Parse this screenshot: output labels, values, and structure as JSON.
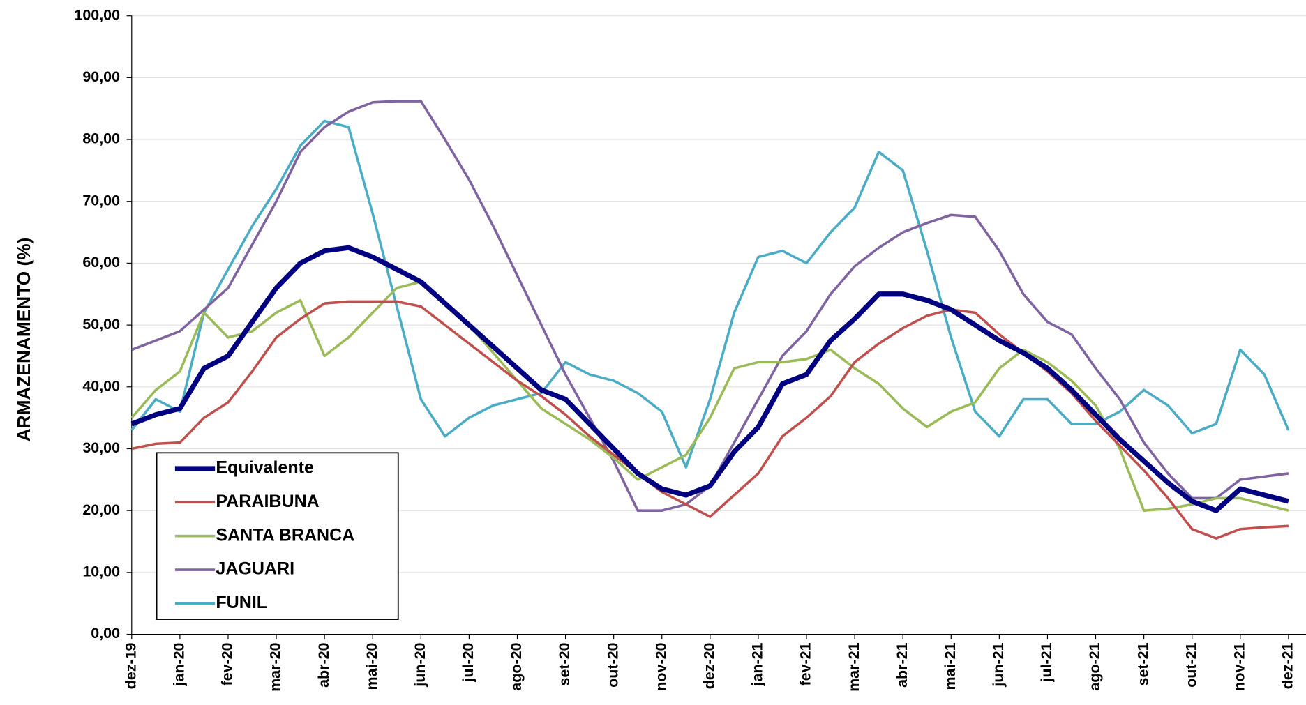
{
  "chart_data": {
    "type": "line",
    "y_label": "ARMAZENAMENTO (%)",
    "categories": [
      "dez-19",
      null,
      "jan-20",
      null,
      "fev-20",
      null,
      "mar-20",
      null,
      "abr-20",
      null,
      "mai-20",
      null,
      "jun-20",
      null,
      "jul-20",
      null,
      "ago-20",
      null,
      "set-20",
      null,
      "out-20",
      null,
      "nov-20",
      null,
      "dez-20",
      null,
      "jan-21",
      null,
      "fev-21",
      null,
      "mar-21",
      null,
      "abr-21",
      null,
      "mai-21",
      null,
      "jun-21",
      null,
      "jul-21",
      null,
      "ago-21",
      null,
      "set-21",
      null,
      "out-21",
      null,
      "nov-21",
      null,
      "dez-21"
    ],
    "series": [
      {
        "name": "Equivalente",
        "color": "#000080",
        "values": [
          34,
          35.5,
          36.5,
          43,
          45,
          50.5,
          56,
          60,
          62,
          62.5,
          61,
          59,
          57,
          53.5,
          50,
          46.5,
          43,
          39.5,
          38,
          34,
          30,
          26,
          23.5,
          22.5,
          24,
          29.5,
          33.5,
          40.5,
          42,
          47.5,
          51,
          55,
          55,
          54,
          52.5,
          50,
          47.5,
          45.5,
          43,
          39.5,
          35.5,
          31.5,
          28,
          24.5,
          21.5,
          20,
          23.5,
          22.5,
          21.5
        ]
      },
      {
        "name": "PARAIBUNA",
        "color": "#c0504d",
        "values": [
          30,
          30.8,
          31,
          35,
          37.5,
          42.5,
          48,
          51,
          53.5,
          53.8,
          53.8,
          53.8,
          53,
          50,
          47,
          44,
          41,
          38.5,
          35.5,
          32,
          29,
          26,
          23,
          21,
          19,
          22.5,
          26,
          32,
          35,
          38.5,
          44,
          47,
          49.5,
          51.5,
          52.5,
          52,
          48.5,
          45.5,
          42.5,
          39,
          34.5,
          30.5,
          26.5,
          22,
          17,
          15.5,
          17,
          17.3,
          17.5
        ]
      },
      {
        "name": "SANTA BRANCA",
        "color": "#9bbb59",
        "values": [
          35,
          39.5,
          42.5,
          52,
          48,
          49,
          52,
          54,
          45,
          48,
          52,
          56,
          57,
          53.5,
          50,
          45.5,
          41,
          36.5,
          34,
          31.5,
          28.5,
          25,
          27,
          29,
          35,
          43,
          44,
          44,
          44.5,
          46,
          43,
          40.5,
          36.5,
          33.5,
          36,
          37.5,
          43,
          46,
          44,
          41,
          37,
          30,
          20,
          20.3,
          21,
          22,
          22,
          21,
          20
        ]
      },
      {
        "name": "JAGUARI",
        "color": "#8064a2",
        "values": [
          46,
          47.5,
          49,
          52.5,
          56,
          63,
          70,
          78,
          82,
          84.5,
          86,
          86.2,
          86.2,
          80,
          73.5,
          66,
          58,
          50,
          42,
          35,
          28,
          20,
          20,
          21,
          24,
          31,
          38,
          45,
          49,
          55,
          59.5,
          62.5,
          65,
          66.5,
          67.8,
          67.5,
          62,
          55,
          50.5,
          48.5,
          43,
          38,
          31,
          26,
          22,
          22,
          25,
          25.5,
          26
        ]
      },
      {
        "name": "FUNIL",
        "color": "#4bacc6",
        "values": [
          33,
          38,
          36,
          52,
          59,
          66,
          72,
          79,
          83,
          82,
          68,
          53,
          38,
          32,
          35,
          37,
          38,
          39,
          44,
          42,
          41,
          39,
          36,
          27,
          38,
          52,
          61,
          62,
          60,
          65,
          69,
          78,
          75,
          62,
          48,
          36,
          32,
          38,
          38,
          34,
          34,
          36,
          39.5,
          37,
          32.5,
          34,
          46,
          42,
          33
        ]
      }
    ],
    "ylim": [
      0,
      100
    ],
    "yticks": [
      {
        "value": 0,
        "label": "0,00"
      },
      {
        "value": 10,
        "label": "10,00"
      },
      {
        "value": 20,
        "label": "20,00"
      },
      {
        "value": 30,
        "label": "30,00"
      },
      {
        "value": 40,
        "label": "40,00"
      },
      {
        "value": 50,
        "label": "50,00"
      },
      {
        "value": 60,
        "label": "60,00"
      },
      {
        "value": 70,
        "label": "70,00"
      },
      {
        "value": 80,
        "label": "80,00"
      },
      {
        "value": 90,
        "label": "90,00"
      },
      {
        "value": 100,
        "label": "100,00"
      }
    ],
    "grid": true,
    "legend": "lower left"
  }
}
